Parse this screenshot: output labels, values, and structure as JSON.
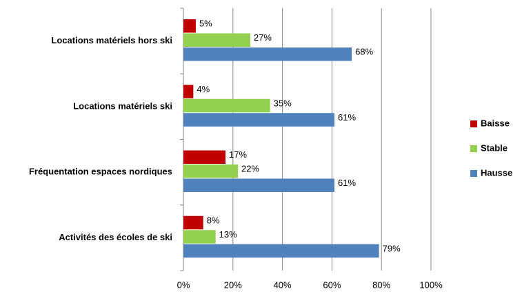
{
  "chart_data": {
    "type": "hbar",
    "categories": [
      "Locations matériels hors ski",
      "Locations matériels ski",
      "Fréquentation espaces nordiques",
      "Activités des écoles de ski"
    ],
    "series": [
      {
        "name": "Baisse",
        "color": "#c00000",
        "values": [
          5,
          4,
          17,
          8
        ],
        "value_labels": [
          "5%",
          "4%",
          "17%",
          "8%"
        ]
      },
      {
        "name": "Stable",
        "color": "#92d050",
        "values": [
          27,
          35,
          22,
          13
        ],
        "value_labels": [
          "27%",
          "35%",
          "22%",
          "13%"
        ]
      },
      {
        "name": "Hausse",
        "color": "#4f81bd",
        "values": [
          68,
          61,
          61,
          79
        ],
        "value_labels": [
          "68%",
          "61%",
          "61%",
          "79%"
        ]
      }
    ],
    "xlim": [
      0,
      100
    ],
    "xticks": [
      {
        "value": 0,
        "label": "0%"
      },
      {
        "value": 20,
        "label": "20%"
      },
      {
        "value": 40,
        "label": "40%"
      },
      {
        "value": 60,
        "label": "60%"
      },
      {
        "value": 80,
        "label": "80%"
      },
      {
        "value": 100,
        "label": "100%"
      }
    ],
    "grid": true,
    "legend": "right"
  }
}
